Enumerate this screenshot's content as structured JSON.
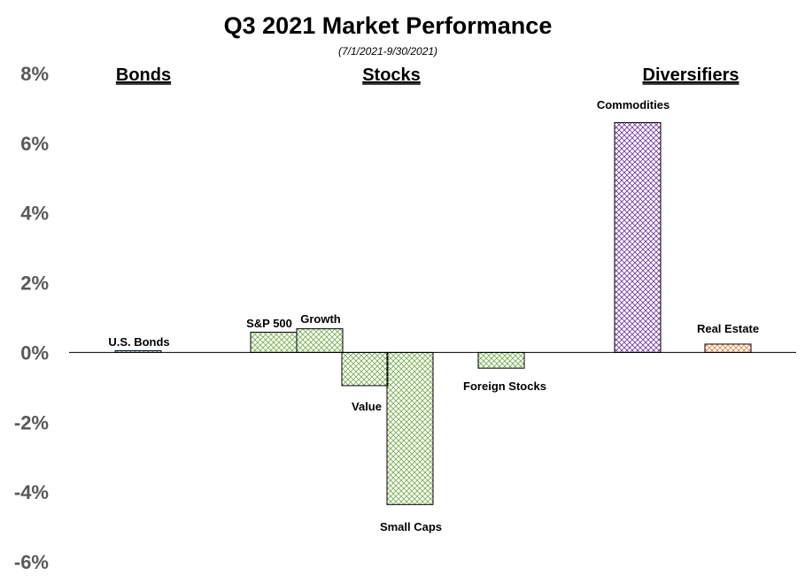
{
  "chart_data": {
    "type": "bar",
    "title": "Q3 2021 Market Performance",
    "subtitle": "(7/1/2021-9/30/2021)",
    "ylim": [
      -6,
      8
    ],
    "yticks": [
      "8%",
      "6%",
      "4%",
      "2%",
      "0%",
      "-2%",
      "-4%",
      "-6%"
    ],
    "grid": false,
    "groups": [
      {
        "label": "Bonds"
      },
      {
        "label": "Stocks"
      },
      {
        "label": "Diversifiers"
      }
    ],
    "categories": [
      "U.S. Bonds",
      "S&P 500",
      "Growth",
      "Value",
      "Small Caps",
      "Foreign Stocks",
      "Commodities",
      "Real Estate"
    ],
    "values": [
      0.05,
      0.58,
      0.68,
      -0.95,
      -4.36,
      -0.45,
      6.59,
      0.24
    ],
    "colors": {
      "bonds": "#5b9bd5",
      "stocks": "#70ad47",
      "commodities": "#7030a0",
      "real_estate": "#ed7d31"
    }
  }
}
